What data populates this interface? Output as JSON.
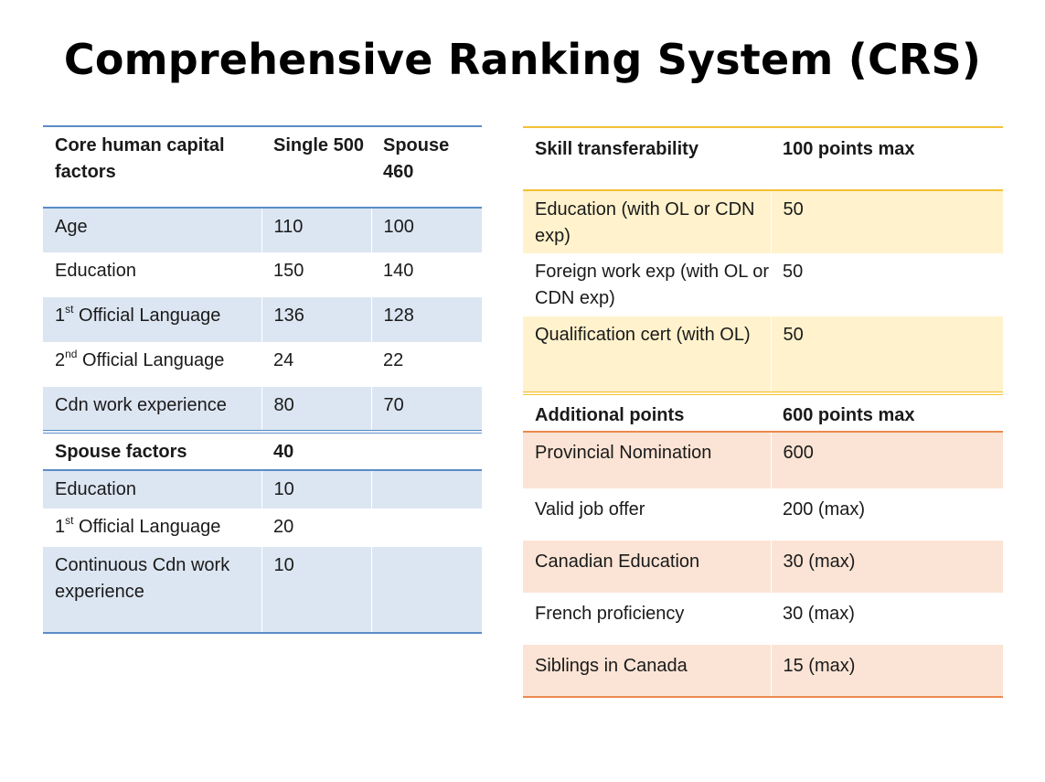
{
  "title": "Comprehensive Ranking System  (CRS)",
  "core_table": {
    "header": {
      "col1": "Core human capital factors",
      "col2": "Single 500",
      "col3": "Spouse 460"
    },
    "rows": [
      {
        "pre": "Age",
        "sup": "",
        "post": "",
        "single": "110",
        "spouse": "100"
      },
      {
        "pre": "Education",
        "sup": "",
        "post": "",
        "single": "150",
        "spouse": "140"
      },
      {
        "pre": "1",
        "sup": "st",
        "post": " Official Language",
        "single": "136",
        "spouse": "128"
      },
      {
        "pre": "2",
        "sup": "nd",
        "post": " Official Language",
        "single": "24",
        "spouse": "22"
      },
      {
        "pre": "Cdn work experience",
        "sup": "",
        "post": "",
        "single": "80",
        "spouse": "70"
      }
    ]
  },
  "spouse_table": {
    "header": {
      "label": "Spouse factors",
      "points": "40"
    },
    "rows": [
      {
        "pre": "Education",
        "sup": "",
        "post": "",
        "points": "10"
      },
      {
        "pre": "1",
        "sup": "st",
        "post": " Official Language",
        "points": "20"
      },
      {
        "pre": "Continuous Cdn work experience",
        "sup": "",
        "post": "",
        "points": "10"
      }
    ]
  },
  "skill_table": {
    "header": {
      "label": "Skill transferability",
      "points": "100 points  max"
    },
    "rows": [
      {
        "label": "Education (with OL or CDN exp)",
        "points": "50"
      },
      {
        "label": "Foreign work exp (with OL or CDN exp)",
        "points": "50"
      },
      {
        "label": "Qualification cert (with OL)",
        "points": "50"
      }
    ]
  },
  "additional_table": {
    "header": {
      "label": "Additional points",
      "points": "600 points  max"
    },
    "rows": [
      {
        "label": "Provincial  Nomination",
        "points": "600"
      },
      {
        "label": "Valid job offer",
        "points": "200 (max)"
      },
      {
        "label": "Canadian Education",
        "points": " 30 (max)"
      },
      {
        "label": "French proficiency",
        "points": "30 (max)"
      },
      {
        "label": "Siblings in Canada",
        "points": "15 (max)"
      }
    ]
  },
  "colors": {
    "blue_band": "#dce6f2",
    "blue_rule": "#5b8cc8",
    "yellow_band": "#fff2cc",
    "yellow_rule": "#f5c036",
    "orange_band": "#fbe4d5",
    "orange_rule": "#ec8a4e"
  }
}
